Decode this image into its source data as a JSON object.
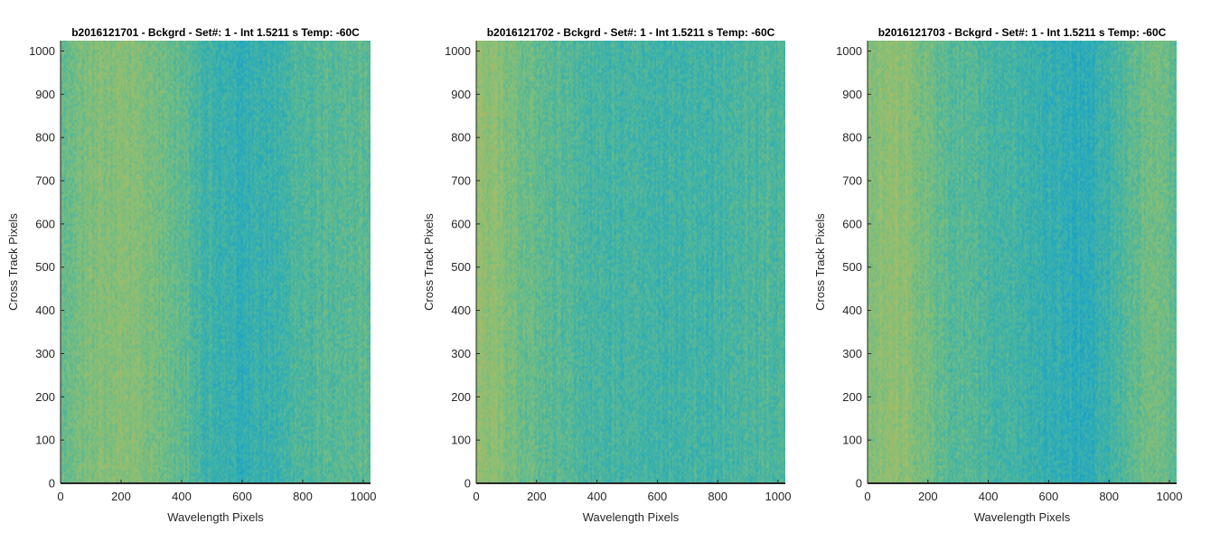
{
  "chart_data": [
    {
      "type": "heatmap",
      "title": "b2016121701 - Bckgrd - Set#: 1 - Int 1.5211 s Temp: -60C",
      "xlabel": "Wavelength Pixels",
      "ylabel": "Cross Track Pixels",
      "xlim": [
        0,
        1024
      ],
      "ylim": [
        0,
        1024
      ],
      "xticks": [
        0,
        200,
        400,
        600,
        800,
        1000
      ],
      "yticks": [
        0,
        100,
        200,
        300,
        400,
        500,
        600,
        700,
        800,
        900,
        1000
      ],
      "xtick_labels": [
        "0",
        "200",
        "400",
        "600",
        "800",
        "1000"
      ],
      "ytick_labels": [
        "0",
        "100",
        "200",
        "300",
        "400",
        "500",
        "600",
        "700",
        "800",
        "900",
        "1000"
      ],
      "grid": false,
      "colormap": [
        "#b7bb5f",
        "#7fbf7a",
        "#3eb3a8",
        "#139fd0"
      ],
      "column_profile": {
        "x": [
          0,
          100,
          200,
          300,
          400,
          450,
          500,
          600,
          700,
          800,
          900,
          1024
        ],
        "level": [
          0.45,
          0.32,
          0.28,
          0.36,
          0.48,
          0.62,
          0.68,
          0.76,
          0.7,
          0.58,
          0.52,
          0.5
        ]
      }
    },
    {
      "type": "heatmap",
      "title": "b2016121702 - Bckgrd - Set#: 1 - Int 1.5211 s Temp: -60C",
      "xlabel": "Wavelength Pixels",
      "ylabel": "Cross Track Pixels",
      "xlim": [
        0,
        1024
      ],
      "ylim": [
        0,
        1024
      ],
      "xticks": [
        0,
        200,
        400,
        600,
        800,
        1000
      ],
      "yticks": [
        0,
        100,
        200,
        300,
        400,
        500,
        600,
        700,
        800,
        900,
        1000
      ],
      "xtick_labels": [
        "0",
        "200",
        "400",
        "600",
        "800",
        "1000"
      ],
      "ytick_labels": [
        "0",
        "100",
        "200",
        "300",
        "400",
        "500",
        "600",
        "700",
        "800",
        "900",
        "1000"
      ],
      "grid": false,
      "colormap": [
        "#b7bb5f",
        "#7fbf7a",
        "#3eb3a8",
        "#139fd0"
      ],
      "column_profile": {
        "x": [
          0,
          60,
          120,
          200,
          300,
          400,
          500,
          600,
          700,
          800,
          900,
          1024
        ],
        "level": [
          0.22,
          0.26,
          0.36,
          0.48,
          0.56,
          0.62,
          0.64,
          0.66,
          0.66,
          0.64,
          0.6,
          0.58
        ]
      }
    },
    {
      "type": "heatmap",
      "title": "b2016121703 - Bckgrd - Set#: 1 - Int 1.5211 s Temp: -60C",
      "xlabel": "Wavelength Pixels",
      "ylabel": "Cross Track Pixels",
      "xlim": [
        0,
        1024
      ],
      "ylim": [
        0,
        1024
      ],
      "xticks": [
        0,
        200,
        400,
        600,
        800,
        1000
      ],
      "yticks": [
        0,
        100,
        200,
        300,
        400,
        500,
        600,
        700,
        800,
        900,
        1000
      ],
      "xtick_labels": [
        "0",
        "200",
        "400",
        "600",
        "800",
        "1000"
      ],
      "ytick_labels": [
        "0",
        "100",
        "200",
        "300",
        "400",
        "500",
        "600",
        "700",
        "800",
        "900",
        "1000"
      ],
      "grid": false,
      "colormap": [
        "#b7bb5f",
        "#7fbf7a",
        "#3eb3a8",
        "#139fd0"
      ],
      "column_profile": {
        "x": [
          0,
          100,
          160,
          250,
          350,
          450,
          550,
          650,
          720,
          800,
          900,
          950,
          1024
        ],
        "level": [
          0.3,
          0.22,
          0.32,
          0.5,
          0.58,
          0.64,
          0.72,
          0.78,
          0.8,
          0.68,
          0.46,
          0.4,
          0.48
        ]
      }
    }
  ]
}
